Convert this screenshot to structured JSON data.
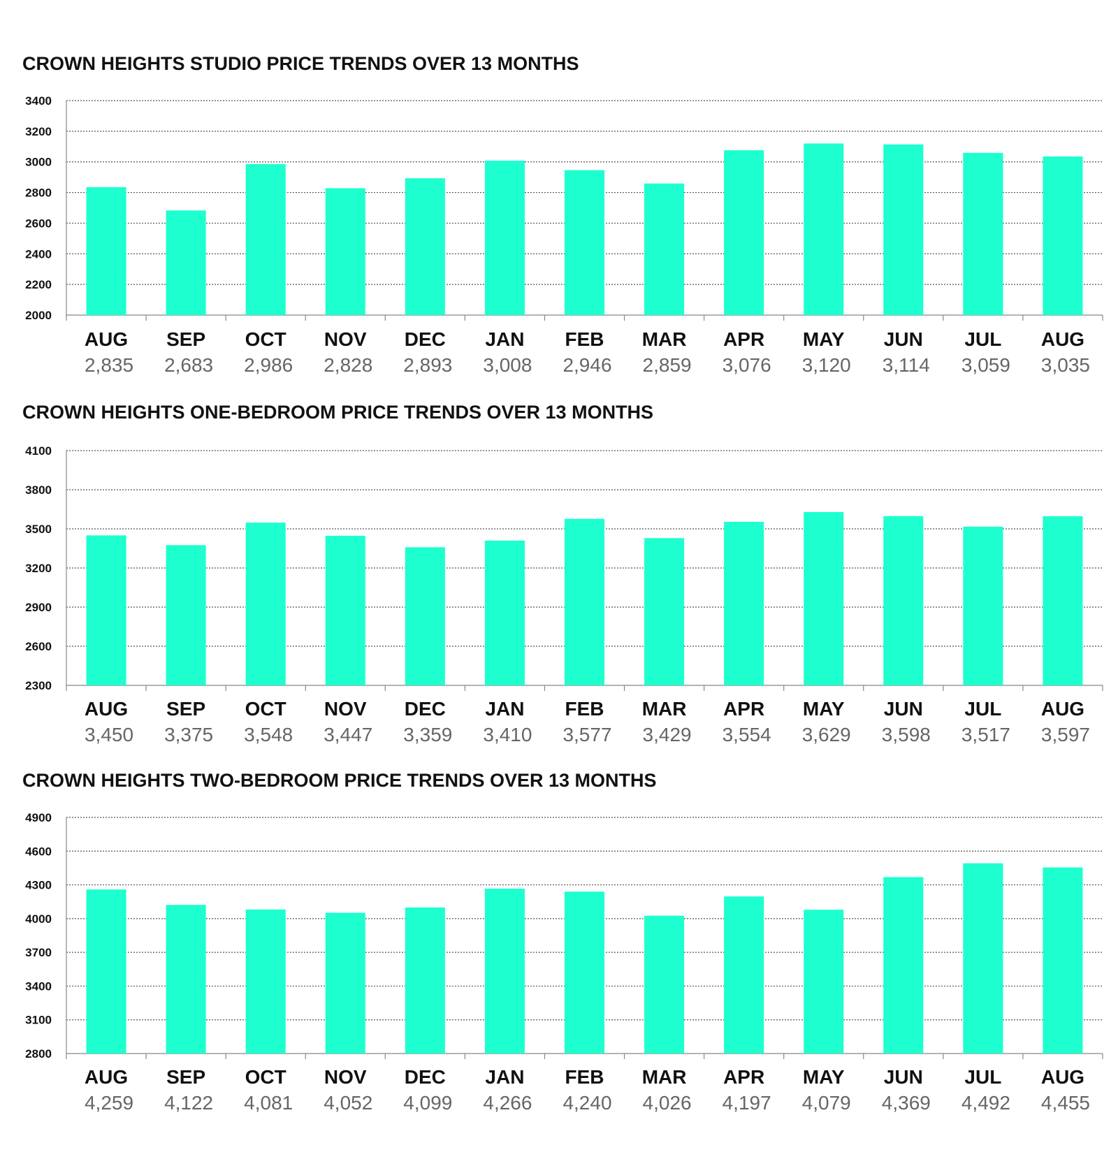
{
  "chart_data": [
    {
      "type": "bar",
      "title": "CROWN HEIGHTS STUDIO PRICE TRENDS OVER 13 MONTHS",
      "categories": [
        "AUG",
        "SEP",
        "OCT",
        "NOV",
        "DEC",
        "JAN",
        "FEB",
        "MAR",
        "APR",
        "MAY",
        "JUN",
        "JUL",
        "AUG"
      ],
      "values": [
        2835,
        2683,
        2986,
        2828,
        2893,
        3008,
        2946,
        2859,
        3076,
        3120,
        3114,
        3059,
        3035
      ],
      "value_labels": [
        "2,835",
        "2,683",
        "2,986",
        "2,828",
        "2,893",
        "3,008",
        "2,946",
        "2,859",
        "3,076",
        "3,120",
        "3,114",
        "3,059",
        "3,035"
      ],
      "ylim": [
        2000,
        3400
      ],
      "yticks": [
        2000,
        2200,
        2400,
        2600,
        2800,
        3000,
        3200,
        3400
      ],
      "grid": true,
      "bar_color": "#1DFFCF"
    },
    {
      "type": "bar",
      "title": "CROWN HEIGHTS ONE-BEDROOM PRICE TRENDS OVER 13 MONTHS",
      "categories": [
        "AUG",
        "SEP",
        "OCT",
        "NOV",
        "DEC",
        "JAN",
        "FEB",
        "MAR",
        "APR",
        "MAY",
        "JUN",
        "JUL",
        "AUG"
      ],
      "values": [
        3450,
        3375,
        3548,
        3447,
        3359,
        3410,
        3577,
        3429,
        3554,
        3629,
        3598,
        3517,
        3597
      ],
      "value_labels": [
        "3,450",
        "3,375",
        "3,548",
        "3,447",
        "3,359",
        "3,410",
        "3,577",
        "3,429",
        "3,554",
        "3,629",
        "3,598",
        "3,517",
        "3,597"
      ],
      "ylim": [
        2300,
        4100
      ],
      "yticks": [
        2300,
        2600,
        2900,
        3200,
        3500,
        3800,
        4100
      ],
      "grid": true,
      "bar_color": "#1DFFCF"
    },
    {
      "type": "bar",
      "title": "CROWN HEIGHTS TWO-BEDROOM PRICE TRENDS OVER 13 MONTHS",
      "categories": [
        "AUG",
        "SEP",
        "OCT",
        "NOV",
        "DEC",
        "JAN",
        "FEB",
        "MAR",
        "APR",
        "MAY",
        "JUN",
        "JUL",
        "AUG"
      ],
      "values": [
        4259,
        4122,
        4081,
        4052,
        4099,
        4266,
        4240,
        4026,
        4197,
        4079,
        4369,
        4492,
        4455
      ],
      "value_labels": [
        "4,259",
        "4,122",
        "4,081",
        "4,052",
        "4,099",
        "4,266",
        "4,240",
        "4,026",
        "4,197",
        "4,079",
        "4,369",
        "4,492",
        "4,455"
      ],
      "ylim": [
        2800,
        4900
      ],
      "yticks": [
        2800,
        3100,
        3400,
        3700,
        4000,
        4300,
        4600,
        4900
      ],
      "grid": true,
      "bar_color": "#1DFFCF"
    }
  ]
}
